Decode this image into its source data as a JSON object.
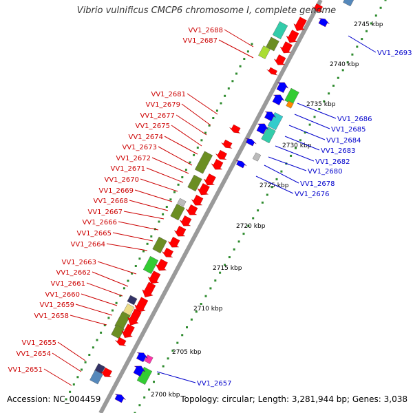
{
  "title": "Vibrio vulnificus CMCP6 chromosome I, complete genome",
  "footer": {
    "accession": "Accession: NC_004459",
    "summary": "Topology: circular; Length: 3,281,944 bp; Genes: 3,038"
  },
  "colors": {
    "backbone": "#9a9a9a",
    "forward_label": "#cc0000",
    "reverse_label": "#0000cc",
    "forward_gene": "#ff0000",
    "reverse_gene": "#0000ff",
    "tick_dot": "#2e8b2e",
    "cog_olive": "#6b8e23",
    "cog_green": "#33cc33",
    "cog_cyan": "#33cccc",
    "cog_teal": "#33ccaa",
    "cog_lime": "#aadd33",
    "cog_gray": "#bbbbbb",
    "cog_orange": "#ff8800",
    "cog_pink": "#ff33aa",
    "cog_steel": "#5588bb",
    "cog_navy": "#333366",
    "cog_khaki": "#eedd88"
  },
  "scale_labels": [
    "2745 kbp",
    "2740 kbp",
    "2735 kbp",
    "2730 kbp",
    "2725 kbp",
    "2720 kbp",
    "2715 kbp",
    "2710 kbp",
    "2705 kbp",
    "2700 kbp"
  ],
  "forward_gene_labels": [
    "VV1_2688",
    "VV1_2687",
    "VV1_2681",
    "VV1_2679",
    "VV1_2677",
    "VV1_2675",
    "VV1_2674",
    "VV1_2673",
    "VV1_2672",
    "VV1_2671",
    "VV1_2670",
    "VV1_2669",
    "VV1_2668",
    "VV1_2667",
    "VV1_2666",
    "VV1_2665",
    "VV1_2664",
    "VV1_2663",
    "VV1_2662",
    "VV1_2661",
    "VV1_2660",
    "VV1_2659",
    "VV1_2658",
    "VV1_2655",
    "VV1_2654",
    "VV1_2651"
  ],
  "reverse_gene_labels": [
    "VV1_2693",
    "VV1_2686",
    "VV1_2685",
    "VV1_2684",
    "VV1_2683",
    "VV1_2682",
    "VV1_2680",
    "VV1_2678",
    "VV1_2676",
    "VV1_2657"
  ]
}
